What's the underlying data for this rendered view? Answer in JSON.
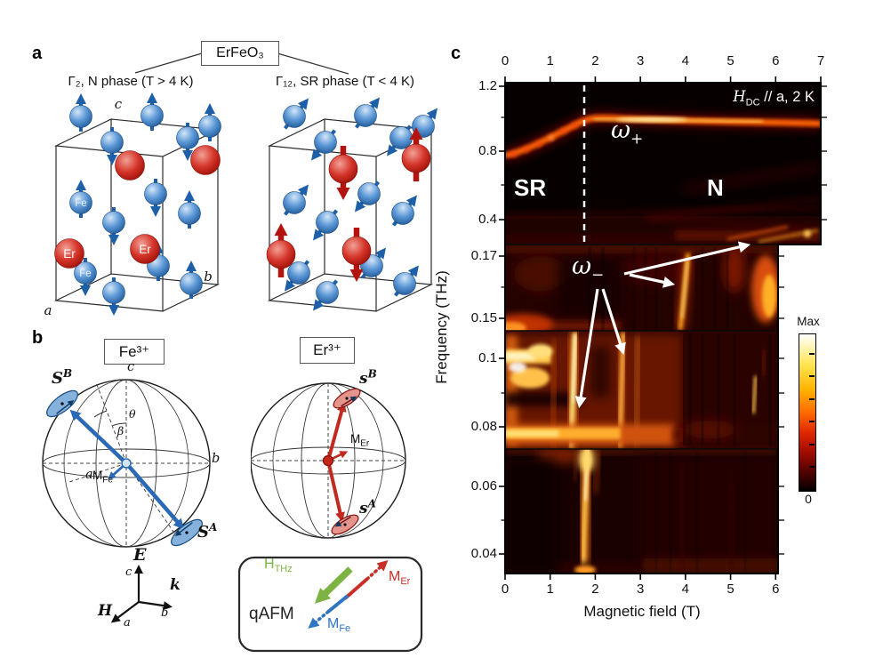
{
  "panel_a": {
    "label": "a",
    "compound": "ErFeO₃",
    "left_structure": {
      "phase_label": "Γ₂, N phase (T > 4 K)",
      "fe_label": "Fe",
      "er_label": "Er",
      "axis_a": "a",
      "axis_b": "b",
      "axis_c": "c"
    },
    "right_structure": {
      "phase_label": "Γ₁₂, SR phase (T < 4 K)"
    }
  },
  "panel_b": {
    "label": "b",
    "fe_ion": "Fe³⁺",
    "er_ion": "Er³⁺",
    "fe_sphere": {
      "S": "S",
      "sup_B": "B",
      "sup_A": "A",
      "M": "M",
      "sub_Fe": "Fe",
      "theta": "θ",
      "beta": "β",
      "axis_a": "a",
      "axis_b": "b",
      "axis_c": "c"
    },
    "er_sphere": {
      "s": "s",
      "sup_B": "B",
      "sup_A": "A",
      "M": "M",
      "sub_Er": "Er"
    },
    "beam_axes": {
      "E": "E",
      "k": "k",
      "H": "H",
      "axis_a": "a",
      "axis_b": "b",
      "axis_c": "c"
    },
    "qafm": {
      "title": "qAFM",
      "H": "H",
      "sub_THz": "THz",
      "M": "M",
      "sub_Er": "Er",
      "sub_Fe": "Fe"
    }
  },
  "panel_c": {
    "label": "c",
    "condition": {
      "H": "H",
      "sub": "DC",
      "rest": " // a, 2 K"
    },
    "regions": {
      "sr": "SR",
      "n": "N"
    },
    "modes": {
      "omega": "ω",
      "plus": "+",
      "minus": "−"
    },
    "axes": {
      "top_ticks": [
        "0",
        "1",
        "2",
        "3",
        "4",
        "5",
        "6",
        "7"
      ],
      "bottom_ticks": [
        "0",
        "1",
        "2",
        "3",
        "4",
        "5",
        "6"
      ],
      "left_ticks": [
        "1.2",
        "0.8",
        "0.4",
        "0.17",
        "0.15",
        "0.1",
        "0.08",
        "0.06",
        "0.04"
      ],
      "xlabel": "Magnetic field (T)",
      "ylabel": "Frequency (THz)"
    },
    "colorbar": {
      "max": "Max",
      "min": "0"
    }
  },
  "chart_data": {
    "type": "heatmap",
    "title": "THz absorption of ErFeO₃ vs magnetic field (stitched frequency segments)",
    "xlabel": "Magnetic field (T)",
    "ylabel": "Frequency (THz)",
    "x_range_top_segment": [
      0,
      7
    ],
    "x_range_lower_segments": [
      0,
      6
    ],
    "y_segments_thz": [
      [
        0.25,
        1.22
      ],
      [
        0.147,
        0.174
      ],
      [
        0.073,
        0.108
      ],
      [
        0.034,
        0.071
      ]
    ],
    "y_tick_values_thz": [
      1.2,
      0.8,
      0.4,
      0.17,
      0.15,
      0.1,
      0.08,
      0.06,
      0.04
    ],
    "colorbar": {
      "max_label": "Max",
      "min_label": "0"
    },
    "condition_label": "HDC // a, 2 K",
    "phase_boundary_T": 1.75,
    "regions": [
      {
        "label": "SR",
        "x_range": [
          0,
          1.75
        ]
      },
      {
        "label": "N",
        "x_range": [
          1.75,
          7
        ]
      }
    ],
    "series": [
      {
        "name": "ω+ branch",
        "x_T": [
          0,
          0.5,
          1.0,
          1.5,
          1.75,
          3.0,
          5.0,
          7.0
        ],
        "y_THz": [
          0.8,
          0.86,
          0.93,
          0.99,
          1.01,
          1.01,
          1.01,
          1.0
        ]
      },
      {
        "name": "ω− features (arrow targets)",
        "points_T_THz": [
          [
            1.6,
            0.062
          ],
          [
            1.6,
            0.095
          ],
          [
            2.6,
            0.105
          ],
          [
            3.9,
            0.16
          ],
          [
            5.5,
            0.45
          ]
        ]
      }
    ],
    "legend_position": "colorbar right",
    "grid": false
  }
}
